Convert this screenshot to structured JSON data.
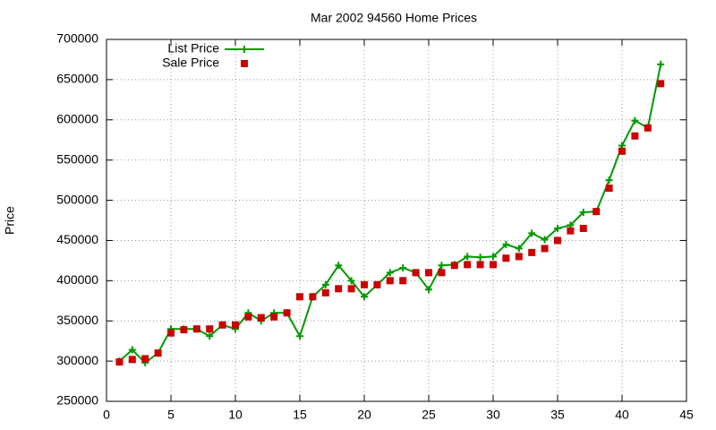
{
  "chart_data": {
    "type": "line",
    "title": "Mar 2002 94560 Home Prices",
    "y_label": "Price",
    "x": [
      1,
      2,
      3,
      4,
      5,
      6,
      7,
      8,
      9,
      10,
      11,
      12,
      13,
      14,
      15,
      16,
      17,
      18,
      19,
      20,
      21,
      22,
      23,
      24,
      25,
      26,
      27,
      28,
      29,
      30,
      31,
      32,
      33,
      34,
      35,
      36,
      37,
      38,
      39,
      40,
      41,
      42,
      43
    ],
    "series": [
      {
        "name": "List Price",
        "color": "#009900",
        "style": "linespoints",
        "values": [
          300000,
          314000,
          298000,
          310000,
          340000,
          340000,
          340000,
          331000,
          345000,
          340000,
          360000,
          350000,
          360000,
          360000,
          331000,
          380000,
          395000,
          419000,
          400000,
          380000,
          395000,
          410000,
          416000,
          410000,
          389000,
          419000,
          420000,
          430000,
          429000,
          430000,
          445000,
          440000,
          459000,
          451000,
          465000,
          469000,
          485000,
          486000,
          525000,
          568000,
          599000,
          590000,
          669000
        ]
      },
      {
        "name": "Sale Price",
        "color": "#cc0000",
        "style": "points",
        "values": [
          299000,
          302000,
          303000,
          310000,
          335000,
          339000,
          340000,
          340000,
          345000,
          345000,
          355000,
          354000,
          355000,
          360000,
          380000,
          380000,
          385000,
          390000,
          390000,
          395000,
          395000,
          400000,
          400000,
          410000,
          410000,
          410000,
          419000,
          420000,
          420000,
          420000,
          428000,
          430000,
          435000,
          440000,
          450000,
          462000,
          465000,
          486000,
          515000,
          561000,
          580000,
          590000,
          645000
        ]
      }
    ],
    "xlim": [
      0,
      45
    ],
    "xticks": [
      0,
      5,
      10,
      15,
      20,
      25,
      30,
      35,
      40,
      45
    ],
    "ylim": [
      250000,
      700000
    ],
    "yticks": [
      250000,
      300000,
      350000,
      400000,
      450000,
      500000,
      550000,
      600000,
      650000,
      700000
    ],
    "grid": true,
    "legend": "top-left"
  }
}
